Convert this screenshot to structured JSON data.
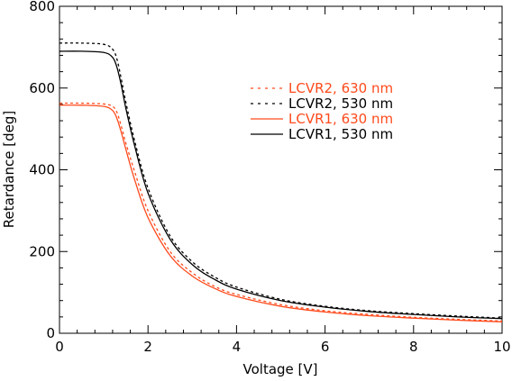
{
  "chart_data": {
    "type": "line",
    "xlabel": "Voltage [V]",
    "ylabel": "Retardance [deg]",
    "xlim": [
      0,
      10
    ],
    "ylim": [
      0,
      800
    ],
    "xticks": [
      0,
      2,
      4,
      6,
      8,
      10
    ],
    "yticks": [
      0,
      200,
      400,
      600,
      800
    ],
    "xtick_labels": [
      "0",
      "2",
      "4",
      "6",
      "8",
      "10"
    ],
    "ytick_labels": [
      "0",
      "200",
      "400",
      "600",
      "800"
    ],
    "grid": false,
    "legend_position": "upper-right",
    "series": [
      {
        "name": "LCVR2, 630 nm",
        "color": "#ff4a1c",
        "dash": "dashed",
        "x": [
          0,
          0.5,
          1.0,
          1.2,
          1.3,
          1.4,
          1.5,
          1.7,
          2.0,
          2.5,
          3.0,
          3.5,
          4.0,
          5.0,
          6.0,
          7.0,
          8.0,
          9.0,
          10.0
        ],
        "y": [
          563,
          563,
          561,
          555,
          540,
          505,
          465,
          395,
          300,
          200,
          148,
          115,
          95,
          70,
          55,
          46,
          39,
          34,
          30
        ]
      },
      {
        "name": "LCVR2, 530 nm",
        "color": "#000000",
        "dash": "dashed",
        "x": [
          0,
          0.5,
          1.0,
          1.2,
          1.3,
          1.4,
          1.5,
          1.7,
          2.0,
          2.5,
          3.0,
          3.5,
          4.0,
          5.0,
          6.0,
          7.0,
          8.0,
          9.0,
          10.0
        ],
        "y": [
          710,
          710,
          707,
          695,
          670,
          620,
          565,
          470,
          355,
          238,
          175,
          138,
          113,
          83,
          66,
          55,
          48,
          42,
          37
        ]
      },
      {
        "name": "LCVR1, 630 nm",
        "color": "#ff4a1c",
        "dash": "solid",
        "x": [
          0,
          0.5,
          1.0,
          1.2,
          1.3,
          1.4,
          1.5,
          1.7,
          2.0,
          2.5,
          3.0,
          3.5,
          4.0,
          5.0,
          6.0,
          7.0,
          8.0,
          9.0,
          10.0
        ],
        "y": [
          558,
          558,
          555,
          545,
          525,
          490,
          450,
          375,
          283,
          190,
          140,
          110,
          90,
          66,
          52,
          43,
          37,
          32,
          28
        ]
      },
      {
        "name": "LCVR1, 530 nm",
        "color": "#000000",
        "dash": "solid",
        "x": [
          0,
          0.5,
          1.0,
          1.2,
          1.3,
          1.4,
          1.5,
          1.7,
          2.0,
          2.5,
          3.0,
          3.5,
          4.0,
          5.0,
          6.0,
          7.0,
          8.0,
          9.0,
          10.0
        ],
        "y": [
          690,
          690,
          687,
          675,
          650,
          605,
          550,
          458,
          343,
          230,
          168,
          132,
          108,
          80,
          64,
          53,
          46,
          40,
          36
        ]
      }
    ]
  }
}
